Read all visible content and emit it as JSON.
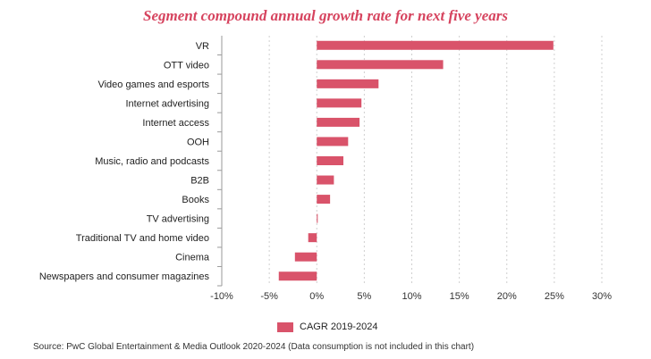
{
  "chart_data": {
    "type": "bar",
    "orientation": "horizontal",
    "title": "Segment compound annual growth rate for next five years",
    "categories": [
      "VR",
      "OTT video",
      "Video games and esports",
      "Internet advertising",
      "Internet access",
      "OOH",
      "Music, radio and podcasts",
      "B2B",
      "Books",
      "TV advertising",
      "Traditional TV and home video",
      "Cinema",
      "Newspapers and consumer magazines"
    ],
    "series": [
      {
        "name": "CAGR 2019-2024",
        "color": "#d9536a",
        "values": [
          24.9,
          13.3,
          6.5,
          4.7,
          4.5,
          3.3,
          2.8,
          1.8,
          1.4,
          0.1,
          -0.9,
          -2.3,
          -4.0
        ]
      }
    ],
    "xlim": [
      -10,
      30
    ],
    "x_ticks": [
      "-10%",
      "-5%",
      "0%",
      "5%",
      "10%",
      "15%",
      "20%",
      "25%",
      "30%"
    ],
    "x_tick_values": [
      -10,
      -5,
      0,
      5,
      10,
      15,
      20,
      25,
      30
    ],
    "grid": "vertical dashed",
    "legend_position": "bottom"
  },
  "legend": {
    "label": "CAGR 2019-2024"
  },
  "source": "Source: PwC Global Entertainment & Media Outlook 2020-2024 (Data consumption is not included in this chart)"
}
